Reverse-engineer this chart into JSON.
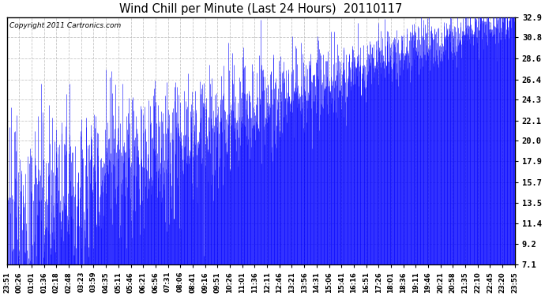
{
  "title": "Wind Chill per Minute (Last 24 Hours)  20110117",
  "copyright": "Copyright 2011 Cartronics.com",
  "line_color": "#0000FF",
  "bg_color": "#FFFFFF",
  "plot_bg_color": "#FFFFFF",
  "grid_color": "#C0C0C0",
  "yticks": [
    7.1,
    9.2,
    11.4,
    13.5,
    15.7,
    17.9,
    20.0,
    22.1,
    24.3,
    26.4,
    28.6,
    30.8,
    32.9
  ],
  "ymin": 7.1,
  "ymax": 32.9,
  "xtick_labels": [
    "23:51",
    "00:26",
    "01:01",
    "01:36",
    "02:18",
    "02:48",
    "03:23",
    "03:59",
    "04:35",
    "05:11",
    "05:46",
    "06:21",
    "06:56",
    "07:31",
    "08:06",
    "08:41",
    "09:16",
    "09:51",
    "10:26",
    "11:01",
    "11:36",
    "12:11",
    "12:46",
    "13:21",
    "13:56",
    "14:31",
    "15:06",
    "15:41",
    "16:16",
    "16:51",
    "17:26",
    "18:01",
    "18:36",
    "19:11",
    "19:46",
    "20:21",
    "20:58",
    "21:35",
    "22:10",
    "22:45",
    "23:20",
    "23:55"
  ],
  "figwidth": 6.9,
  "figheight": 3.75,
  "dpi": 100
}
